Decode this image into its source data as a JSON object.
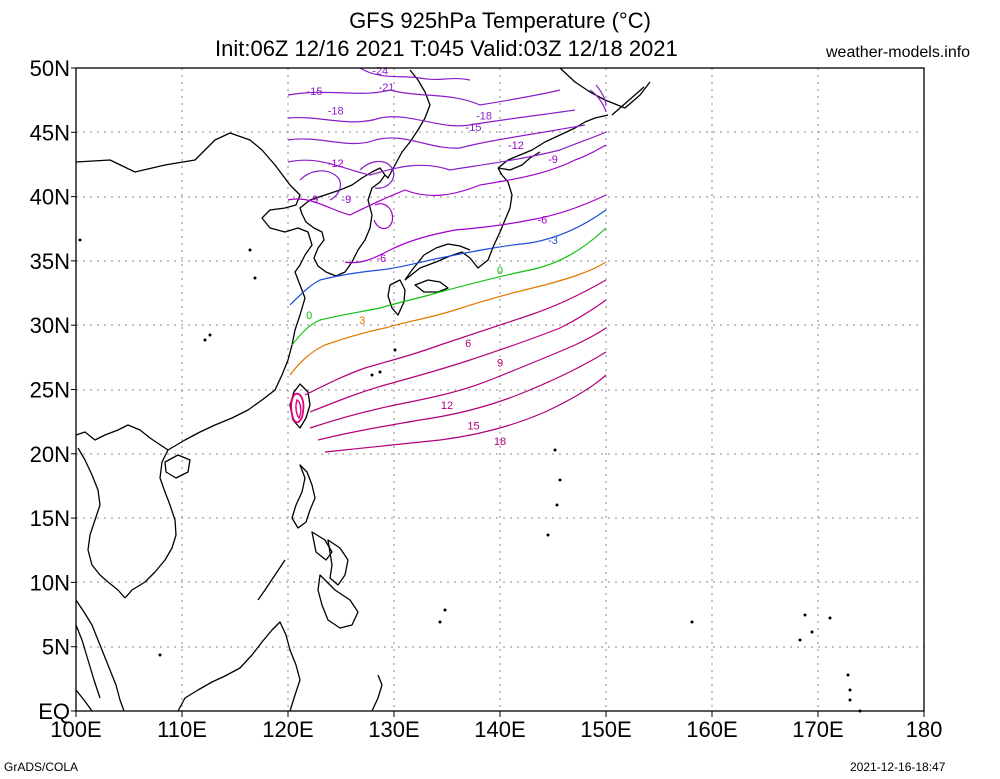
{
  "title": {
    "line1": "GFS 925hPa Temperature (°C)",
    "line2": "Init:06Z 12/16 2021 T:045 Valid:03Z 12/18 2021",
    "site": "weather-models.info"
  },
  "footer": {
    "left": "GrADS/COLA",
    "right": "2021-12-16-18:47"
  },
  "map": {
    "lon_range": [
      100,
      180
    ],
    "lat_range": [
      0,
      50
    ],
    "x_tick_labels": [
      "100E",
      "110E",
      "120E",
      "130E",
      "140E",
      "150E",
      "160E",
      "170E",
      "180"
    ],
    "y_tick_labels": [
      "EQ",
      "5N",
      "10N",
      "15N",
      "20N",
      "25N",
      "30N",
      "35N",
      "40N",
      "45N",
      "50N"
    ],
    "contour_labels": [
      {
        "text": "-24",
        "lon": 128.7,
        "lat": 49.5
      },
      {
        "text": "-21",
        "lon": 129.3,
        "lat": 48.2
      },
      {
        "text": "-15",
        "lon": 122.5,
        "lat": 47.9
      },
      {
        "text": "-18",
        "lon": 124.5,
        "lat": 46.4
      },
      {
        "text": "-18",
        "lon": 138.5,
        "lat": 46.0
      },
      {
        "text": "-15",
        "lon": 137.5,
        "lat": 45.1
      },
      {
        "text": "-12",
        "lon": 124.5,
        "lat": 42.3
      },
      {
        "text": "-12",
        "lon": 141.5,
        "lat": 43.7
      },
      {
        "text": "-9",
        "lon": 125.5,
        "lat": 39.5
      },
      {
        "text": "-9",
        "lon": 122.4,
        "lat": 39.5
      },
      {
        "text": "-9",
        "lon": 145.0,
        "lat": 42.6
      },
      {
        "text": "-6",
        "lon": 128.8,
        "lat": 34.9
      },
      {
        "text": "-6",
        "lon": 144.0,
        "lat": 37.9
      },
      {
        "text": "-3",
        "lon": 145.0,
        "lat": 36.3
      },
      {
        "text": "0",
        "lon": 122.0,
        "lat": 30.5
      },
      {
        "text": "0",
        "lon": 140.0,
        "lat": 34.0
      },
      {
        "text": "3",
        "lon": 127.0,
        "lat": 30.1
      },
      {
        "text": "6",
        "lon": 137.0,
        "lat": 28.3
      },
      {
        "text": "9",
        "lon": 140.0,
        "lat": 26.8
      },
      {
        "text": "12",
        "lon": 135.0,
        "lat": 23.5
      },
      {
        "text": "15",
        "lon": 137.5,
        "lat": 21.9
      },
      {
        "text": "18",
        "lon": 140.0,
        "lat": 20.7
      }
    ],
    "colors": {
      "cold_purple": "#8a1ec8",
      "mid_purple": "#a000c8",
      "blue": "#1a4ed8",
      "green": "#10c010",
      "orange": "#e07800",
      "warm_magenta": "#b4007a",
      "hot_pink": "#e0007a",
      "coast": "#000000",
      "grid": "#888888"
    }
  }
}
